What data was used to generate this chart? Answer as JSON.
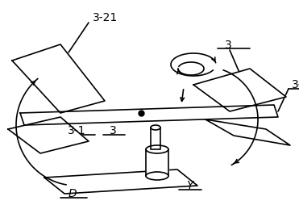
{
  "bg_color": "#ffffff",
  "line_color": "#000000",
  "figsize": [
    3.71,
    2.54
  ],
  "dpi": 100,
  "lw": 1.2
}
